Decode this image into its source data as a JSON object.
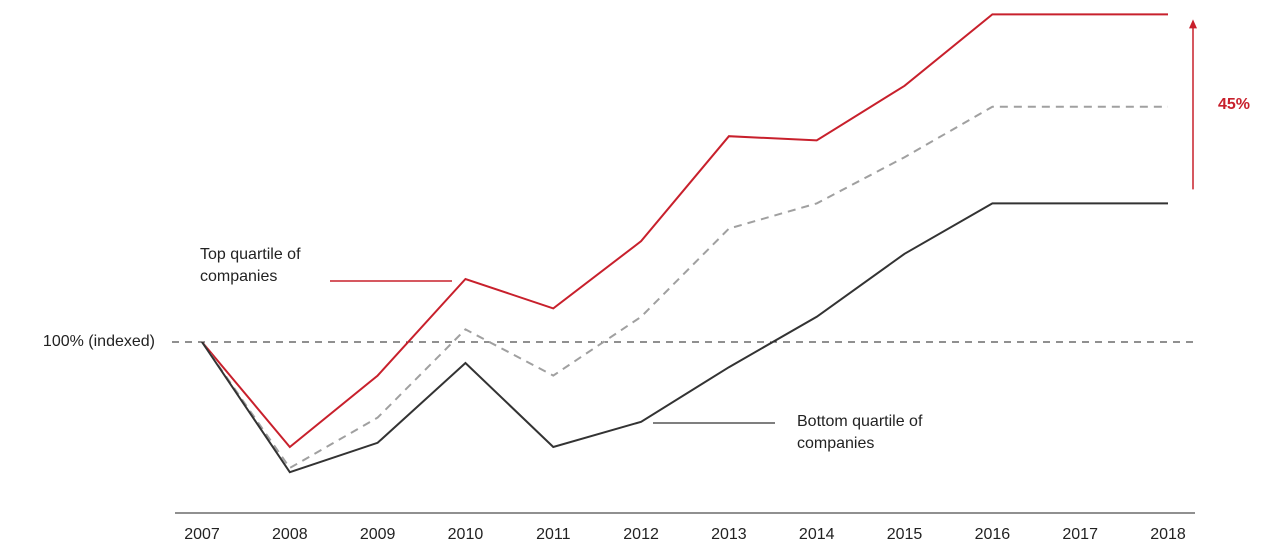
{
  "chart_data": {
    "type": "line",
    "x": [
      2007,
      2008,
      2009,
      2010,
      2011,
      2012,
      2013,
      2014,
      2015,
      2016,
      2017,
      2018
    ],
    "xlim": [
      2007,
      2018
    ],
    "xticks": [
      2007,
      2008,
      2009,
      2010,
      2011,
      2012,
      2013,
      2014,
      2015,
      2016,
      2017,
      2018
    ],
    "ylim": [
      60,
      180
    ],
    "series": [
      {
        "name": "Top quartile of companies",
        "color": "#c8202c",
        "dashed": false,
        "values": [
          100,
          75,
          92,
          115,
          108,
          124,
          149,
          148,
          161,
          178,
          178,
          178
        ]
      },
      {
        "color": "#a0a0a0",
        "dashed": true,
        "values": [
          100,
          70,
          82,
          103,
          92,
          106,
          127,
          133,
          144,
          156,
          156,
          156
        ]
      },
      {
        "name": "Bottom quartile of companies",
        "color": "#333333",
        "dashed": false,
        "values": [
          100,
          69,
          76,
          95,
          75,
          81,
          94,
          106,
          121,
          133,
          133,
          133
        ]
      }
    ],
    "reference_line": {
      "value": 100,
      "label": "100% (indexed)"
    },
    "gap_annotation": "45%",
    "annotation_color": "#c8202c"
  }
}
